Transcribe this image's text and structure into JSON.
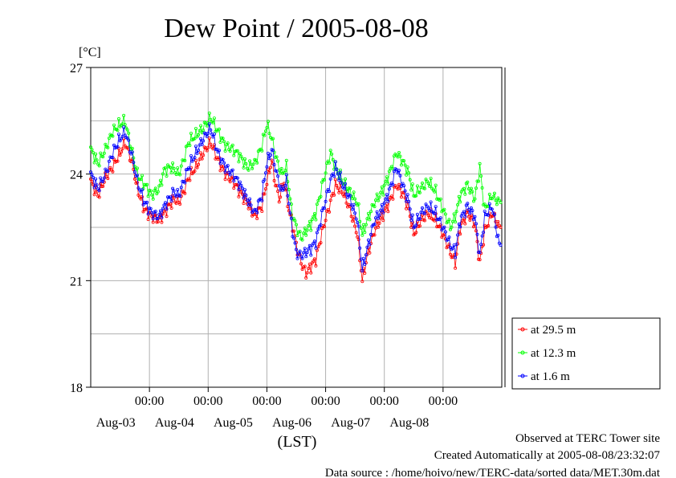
{
  "chart_data": {
    "type": "line",
    "title": "Dew Point / 2005-08-08",
    "ylabel": "[°C]",
    "xlabel": "(LST)",
    "ylim": [
      18,
      27
    ],
    "yticks": [
      18,
      21,
      24,
      27
    ],
    "xlim": [
      "2005-08-02 00:00",
      "2005-08-08 24:00"
    ],
    "xtick_time_label": "00:00",
    "xtick_date_labels": [
      "Aug-03",
      "Aug-04",
      "Aug-05",
      "Aug-06",
      "Aug-07",
      "Aug-08"
    ],
    "sampling_interval_minutes": 30,
    "grid": true,
    "legend_position": "right",
    "series": [
      {
        "name": "at 29.5 m",
        "color": "#ff0000",
        "keyframes": [
          [
            0,
            23.8
          ],
          [
            6,
            23.4
          ],
          [
            12,
            23.9
          ],
          [
            18,
            24.2
          ],
          [
            24,
            24.6
          ],
          [
            28,
            24.9
          ],
          [
            34,
            24.3
          ],
          [
            38,
            23.6
          ],
          [
            44,
            23.0
          ],
          [
            50,
            22.8
          ],
          [
            56,
            22.7
          ],
          [
            62,
            23.0
          ],
          [
            68,
            23.3
          ],
          [
            72,
            23.2
          ],
          [
            76,
            23.5
          ],
          [
            80,
            23.9
          ],
          [
            86,
            24.2
          ],
          [
            92,
            24.6
          ],
          [
            98,
            24.9
          ],
          [
            104,
            24.4
          ],
          [
            110,
            24.0
          ],
          [
            116,
            23.8
          ],
          [
            122,
            23.5
          ],
          [
            128,
            23.2
          ],
          [
            134,
            22.8
          ],
          [
            140,
            23.1
          ],
          [
            144,
            23.8
          ],
          [
            148,
            24.4
          ],
          [
            150,
            23.9
          ],
          [
            154,
            23.3
          ],
          [
            158,
            23.8
          ],
          [
            162,
            23.0
          ],
          [
            166,
            22.4
          ],
          [
            168,
            22.0
          ],
          [
            172,
            21.5
          ],
          [
            176,
            21.2
          ],
          [
            180,
            21.4
          ],
          [
            184,
            21.6
          ],
          [
            190,
            22.5
          ],
          [
            196,
            23.2
          ],
          [
            200,
            23.7
          ],
          [
            206,
            23.5
          ],
          [
            212,
            23.0
          ],
          [
            218,
            22.3
          ],
          [
            222,
            21.0
          ],
          [
            226,
            21.7
          ],
          [
            232,
            22.4
          ],
          [
            238,
            22.8
          ],
          [
            244,
            23.2
          ],
          [
            250,
            23.7
          ],
          [
            256,
            23.4
          ],
          [
            260,
            23.0
          ],
          [
            264,
            22.3
          ],
          [
            270,
            22.7
          ],
          [
            276,
            22.9
          ],
          [
            282,
            22.7
          ],
          [
            288,
            22.3
          ],
          [
            294,
            21.8
          ],
          [
            298,
            21.5
          ],
          [
            302,
            22.5
          ],
          [
            308,
            22.9
          ],
          [
            314,
            22.6
          ],
          [
            318,
            21.5
          ],
          [
            322,
            22.4
          ],
          [
            328,
            22.9
          ],
          [
            334,
            22.5
          ],
          [
            335,
            22.5
          ]
        ]
      },
      {
        "name": "at 12.3 m",
        "color": "#00ff00",
        "keyframes": [
          [
            0,
            24.7
          ],
          [
            6,
            24.3
          ],
          [
            12,
            24.7
          ],
          [
            18,
            25.2
          ],
          [
            24,
            25.4
          ],
          [
            28,
            25.5
          ],
          [
            34,
            24.6
          ],
          [
            38,
            24.0
          ],
          [
            44,
            23.7
          ],
          [
            50,
            23.4
          ],
          [
            56,
            23.6
          ],
          [
            60,
            24.1
          ],
          [
            66,
            24.2
          ],
          [
            72,
            24.0
          ],
          [
            76,
            24.4
          ],
          [
            80,
            24.9
          ],
          [
            86,
            25.1
          ],
          [
            92,
            25.3
          ],
          [
            98,
            25.6
          ],
          [
            104,
            25.2
          ],
          [
            110,
            24.8
          ],
          [
            116,
            24.7
          ],
          [
            122,
            24.5
          ],
          [
            128,
            24.2
          ],
          [
            134,
            24.3
          ],
          [
            140,
            24.8
          ],
          [
            144,
            25.4
          ],
          [
            148,
            25.0
          ],
          [
            152,
            24.4
          ],
          [
            156,
            24.0
          ],
          [
            160,
            24.2
          ],
          [
            164,
            23.0
          ],
          [
            168,
            22.5
          ],
          [
            172,
            22.2
          ],
          [
            176,
            22.4
          ],
          [
            180,
            22.6
          ],
          [
            184,
            22.9
          ],
          [
            190,
            23.8
          ],
          [
            196,
            24.6
          ],
          [
            200,
            24.2
          ],
          [
            206,
            23.8
          ],
          [
            212,
            23.5
          ],
          [
            218,
            23.2
          ],
          [
            222,
            22.3
          ],
          [
            226,
            22.7
          ],
          [
            232,
            23.2
          ],
          [
            238,
            23.5
          ],
          [
            244,
            24.0
          ],
          [
            250,
            24.6
          ],
          [
            256,
            24.3
          ],
          [
            260,
            24.0
          ],
          [
            264,
            23.4
          ],
          [
            270,
            23.6
          ],
          [
            276,
            23.8
          ],
          [
            282,
            23.5
          ],
          [
            288,
            23.0
          ],
          [
            294,
            22.5
          ],
          [
            298,
            22.8
          ],
          [
            302,
            23.4
          ],
          [
            308,
            23.7
          ],
          [
            314,
            23.3
          ],
          [
            318,
            24.2
          ],
          [
            322,
            23.0
          ],
          [
            328,
            23.4
          ],
          [
            334,
            23.2
          ],
          [
            335,
            23.2
          ]
        ]
      },
      {
        "name": "at 1.6 m",
        "color": "#0000ff",
        "keyframes": [
          [
            0,
            24.0
          ],
          [
            6,
            23.6
          ],
          [
            12,
            24.0
          ],
          [
            18,
            24.6
          ],
          [
            24,
            25.0
          ],
          [
            28,
            25.2
          ],
          [
            34,
            24.5
          ],
          [
            38,
            23.8
          ],
          [
            44,
            23.2
          ],
          [
            50,
            22.9
          ],
          [
            56,
            22.8
          ],
          [
            62,
            23.2
          ],
          [
            68,
            23.5
          ],
          [
            72,
            23.4
          ],
          [
            76,
            23.8
          ],
          [
            80,
            24.2
          ],
          [
            86,
            24.6
          ],
          [
            92,
            25.0
          ],
          [
            98,
            25.3
          ],
          [
            104,
            24.6
          ],
          [
            110,
            24.2
          ],
          [
            116,
            24.0
          ],
          [
            122,
            23.7
          ],
          [
            128,
            23.3
          ],
          [
            134,
            22.9
          ],
          [
            140,
            23.4
          ],
          [
            144,
            24.3
          ],
          [
            148,
            24.7
          ],
          [
            152,
            24.0
          ],
          [
            156,
            23.5
          ],
          [
            160,
            23.8
          ],
          [
            164,
            22.6
          ],
          [
            168,
            21.8
          ],
          [
            172,
            21.7
          ],
          [
            176,
            21.8
          ],
          [
            180,
            21.9
          ],
          [
            184,
            22.1
          ],
          [
            190,
            23.0
          ],
          [
            196,
            23.8
          ],
          [
            200,
            24.2
          ],
          [
            206,
            23.7
          ],
          [
            212,
            23.3
          ],
          [
            218,
            22.7
          ],
          [
            222,
            21.3
          ],
          [
            226,
            21.9
          ],
          [
            232,
            22.7
          ],
          [
            238,
            23.0
          ],
          [
            244,
            23.5
          ],
          [
            250,
            24.2
          ],
          [
            256,
            23.6
          ],
          [
            260,
            23.2
          ],
          [
            264,
            22.5
          ],
          [
            270,
            22.9
          ],
          [
            276,
            23.1
          ],
          [
            282,
            22.9
          ],
          [
            288,
            22.5
          ],
          [
            294,
            22.0
          ],
          [
            298,
            21.8
          ],
          [
            302,
            22.7
          ],
          [
            308,
            23.1
          ],
          [
            314,
            22.8
          ],
          [
            318,
            21.7
          ],
          [
            322,
            22.8
          ],
          [
            328,
            23.1
          ],
          [
            334,
            22.0
          ],
          [
            335,
            22.0
          ]
        ]
      }
    ]
  },
  "footer": {
    "line1": "Observed at TERC Tower site",
    "line2": "Created Automatically at 2005-08-08/23:32:07",
    "line3": "Data source : /home/hoivo/new/TERC-data/sorted  data/MET.30m.dat"
  }
}
